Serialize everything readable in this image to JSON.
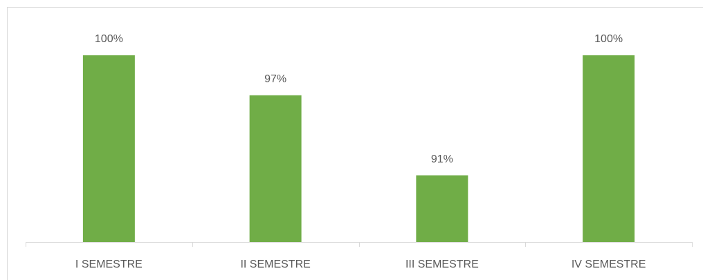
{
  "chart_data": {
    "type": "bar",
    "categories": [
      "I SEMESTRE",
      "II SEMESTRE",
      "III SEMESTRE",
      "IV SEMESTRE"
    ],
    "values": [
      100,
      97,
      91,
      100
    ],
    "value_labels": [
      "100%",
      "97%",
      "91%",
      "100%"
    ],
    "color": "#70ad47",
    "ylim": [
      86,
      102
    ]
  }
}
